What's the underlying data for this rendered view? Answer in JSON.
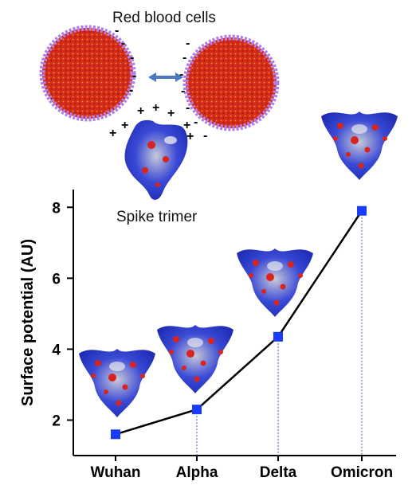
{
  "labels": {
    "cells": "Red blood cells",
    "spike": "Spike trimer"
  },
  "charges": {
    "minus": "-",
    "plus": "+"
  },
  "colors": {
    "cell_fill": "#d42a1a",
    "cell_membrane": "#b27fe8",
    "protein_blue": "#2433c8",
    "protein_red": "#d8241c",
    "protein_white": "#e8e8ee",
    "arrow": "#4a78c4",
    "marker": "#1a3cff",
    "line": "#000000",
    "dropline": "#3b5fb0"
  },
  "chart_data": {
    "type": "line",
    "categories": [
      "Wuhan",
      "Alpha",
      "Delta",
      "Omicron"
    ],
    "values": [
      1.6,
      2.3,
      4.35,
      7.9
    ],
    "ylabel": "Surface potential (AU)",
    "yticks": [
      2,
      4,
      6,
      8
    ],
    "ylim": [
      1.0,
      8.5
    ],
    "grid": false,
    "marker": "square"
  }
}
